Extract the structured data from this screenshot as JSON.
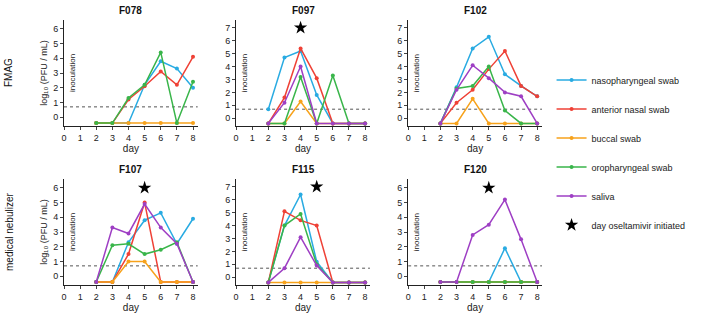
{
  "row_labels": [
    "FMAG",
    "medical nebulizer"
  ],
  "event": {
    "name": "day oseltamivir initiated",
    "marker": "star",
    "color": "#000000"
  },
  "legend": "right",
  "chart_data": [
    {
      "type": "line",
      "title": "F078",
      "x_label": "day",
      "y_label": "log₁₀ (PFU / mL)",
      "x": [
        2,
        3,
        4,
        5,
        6,
        7,
        8
      ],
      "xlim": [
        0,
        8.3
      ],
      "xticks": [
        0,
        1,
        2,
        3,
        4,
        5,
        6,
        7,
        8
      ],
      "ylim": [
        -0.6,
        6.6
      ],
      "yticks": [
        0,
        1,
        2,
        3,
        4,
        5,
        6
      ],
      "grid": false,
      "detection_limit": 0.7,
      "oseltamivir_day": null,
      "annotations": [
        {
          "text": "inoculation",
          "x": 0.5
        }
      ],
      "series": [
        {
          "name": "nasopharyngeal swab",
          "color": "#29abe2",
          "values": [
            -0.4,
            -0.4,
            -0.4,
            2.2,
            3.8,
            3.3,
            2.0
          ]
        },
        {
          "name": "anterior nasal swab",
          "color": "#ef4136",
          "values": [
            -0.4,
            -0.4,
            1.2,
            2.1,
            3.1,
            2.2,
            4.1
          ]
        },
        {
          "name": "buccal swab",
          "color": "#f7a21b",
          "values": [
            -0.4,
            -0.4,
            -0.4,
            -0.4,
            -0.4,
            -0.4,
            -0.4
          ]
        },
        {
          "name": "oropharyngeal swab",
          "color": "#39b54a",
          "values": [
            -0.4,
            -0.4,
            1.3,
            2.2,
            4.4,
            -0.4,
            2.4
          ]
        },
        {
          "name": "saliva",
          "color": "#9e3fc4",
          "values": [
            null,
            null,
            null,
            null,
            null,
            null,
            null
          ]
        }
      ]
    },
    {
      "type": "line",
      "title": "F097",
      "x_label": "day",
      "x": [
        2,
        3,
        4,
        5,
        6,
        7,
        8
      ],
      "xlim": [
        0,
        8.3
      ],
      "xticks": [
        0,
        1,
        2,
        3,
        4,
        5,
        6,
        7,
        8
      ],
      "ylim": [
        -0.6,
        7.6
      ],
      "yticks": [
        0,
        1,
        2,
        3,
        4,
        5,
        6,
        7
      ],
      "grid": false,
      "detection_limit": 0.7,
      "oseltamivir_day": 4,
      "annotations": [
        {
          "text": "inoculation",
          "x": 0.5
        }
      ],
      "series": [
        {
          "name": "nasopharyngeal swab",
          "color": "#29abe2",
          "values": [
            0.7,
            4.7,
            5.2,
            1.8,
            -0.4,
            -0.4,
            -0.4
          ]
        },
        {
          "name": "anterior nasal swab",
          "color": "#ef4136",
          "values": [
            -0.4,
            1.6,
            5.4,
            3.1,
            -0.4,
            -0.4,
            -0.4
          ]
        },
        {
          "name": "buccal swab",
          "color": "#f7a21b",
          "values": [
            -0.4,
            -0.4,
            1.3,
            -0.4,
            -0.4,
            -0.4,
            -0.4
          ]
        },
        {
          "name": "oropharyngeal swab",
          "color": "#39b54a",
          "values": [
            -0.4,
            -0.4,
            3.2,
            -0.4,
            3.3,
            -0.4,
            -0.4
          ]
        },
        {
          "name": "saliva",
          "color": "#9e3fc4",
          "values": [
            -0.4,
            1.2,
            4.0,
            -0.4,
            -0.4,
            -0.4,
            -0.4
          ]
        }
      ]
    },
    {
      "type": "line",
      "title": "F102",
      "x_label": "day",
      "x": [
        2,
        3,
        4,
        5,
        6,
        7,
        8
      ],
      "xlim": [
        0,
        8.3
      ],
      "xticks": [
        0,
        1,
        2,
        3,
        4,
        5,
        6,
        7,
        8
      ],
      "ylim": [
        -0.6,
        7.6
      ],
      "yticks": [
        0,
        1,
        2,
        3,
        4,
        5,
        6,
        7
      ],
      "grid": false,
      "detection_limit": 0.7,
      "oseltamivir_day": null,
      "annotations": [
        {
          "text": "inoculation",
          "x": 0.5
        }
      ],
      "series": [
        {
          "name": "nasopharyngeal swab",
          "color": "#29abe2",
          "values": [
            -0.4,
            2.4,
            5.4,
            6.3,
            3.4,
            2.5,
            1.7
          ]
        },
        {
          "name": "anterior nasal swab",
          "color": "#ef4136",
          "values": [
            -0.4,
            1.2,
            2.2,
            3.8,
            5.2,
            2.5,
            1.7
          ]
        },
        {
          "name": "buccal swab",
          "color": "#f7a21b",
          "values": [
            -0.4,
            -0.4,
            1.5,
            -0.4,
            -0.4,
            -0.4,
            -0.4
          ]
        },
        {
          "name": "oropharyngeal swab",
          "color": "#39b54a",
          "values": [
            -0.4,
            2.3,
            2.5,
            4.0,
            0.6,
            -0.4,
            -0.4
          ]
        },
        {
          "name": "saliva",
          "color": "#9e3fc4",
          "values": [
            -0.4,
            2.2,
            4.1,
            3.1,
            2.0,
            1.7,
            -0.4
          ]
        }
      ]
    },
    {
      "type": "line",
      "title": "F107",
      "x_label": "day",
      "y_label": "log₁₀ (PFU / mL)",
      "x": [
        2,
        3,
        4,
        5,
        6,
        7,
        8
      ],
      "xlim": [
        0,
        8.3
      ],
      "xticks": [
        0,
        1,
        2,
        3,
        4,
        5,
        6,
        7,
        8
      ],
      "ylim": [
        -0.6,
        6.6
      ],
      "yticks": [
        0,
        1,
        2,
        3,
        4,
        5,
        6
      ],
      "grid": false,
      "detection_limit": 0.7,
      "oseltamivir_day": 5,
      "annotations": [
        {
          "text": "inoculation",
          "x": 0.5
        }
      ],
      "series": [
        {
          "name": "nasopharyngeal swab",
          "color": "#29abe2",
          "values": [
            -0.4,
            -0.4,
            2.3,
            3.8,
            4.3,
            2.2,
            3.9
          ]
        },
        {
          "name": "anterior nasal swab",
          "color": "#ef4136",
          "values": [
            -0.4,
            -0.4,
            1.5,
            5.0,
            -0.4,
            -0.4,
            -0.4
          ]
        },
        {
          "name": "buccal swab",
          "color": "#f7a21b",
          "values": [
            -0.4,
            -0.4,
            1.0,
            1.0,
            -0.4,
            -0.4,
            -0.4
          ]
        },
        {
          "name": "oropharyngeal swab",
          "color": "#39b54a",
          "values": [
            -0.4,
            2.1,
            2.2,
            1.5,
            1.8,
            2.3,
            -0.4
          ]
        },
        {
          "name": "saliva",
          "color": "#9e3fc4",
          "values": [
            -0.4,
            3.3,
            2.9,
            4.9,
            3.3,
            2.2,
            -0.4
          ]
        }
      ]
    },
    {
      "type": "line",
      "title": "F115",
      "x_label": "day",
      "x": [
        2,
        3,
        4,
        5,
        6,
        7,
        8
      ],
      "xlim": [
        0,
        8.3
      ],
      "xticks": [
        0,
        1,
        2,
        3,
        4,
        5,
        6,
        7,
        8
      ],
      "ylim": [
        -0.6,
        7.6
      ],
      "yticks": [
        0,
        1,
        2,
        3,
        4,
        5,
        6,
        7
      ],
      "grid": false,
      "detection_limit": 0.7,
      "oseltamivir_day": 5,
      "annotations": [
        {
          "text": "inoculation",
          "x": 0.5
        }
      ],
      "series": [
        {
          "name": "nasopharyngeal swab",
          "color": "#29abe2",
          "values": [
            -0.4,
            4.0,
            6.4,
            1.2,
            -0.4,
            -0.4,
            -0.4
          ]
        },
        {
          "name": "anterior nasal swab",
          "color": "#ef4136",
          "values": [
            -0.4,
            5.1,
            4.4,
            4.0,
            -0.4,
            -0.4,
            -0.4
          ]
        },
        {
          "name": "buccal swab",
          "color": "#f7a21b",
          "values": [
            -0.4,
            -0.4,
            -0.4,
            -0.4,
            -0.4,
            -0.4,
            -0.4
          ]
        },
        {
          "name": "oropharyngeal swab",
          "color": "#39b54a",
          "values": [
            -0.4,
            4.0,
            4.9,
            1.0,
            -0.4,
            -0.4,
            -0.4
          ]
        },
        {
          "name": "saliva",
          "color": "#9e3fc4",
          "values": [
            -0.4,
            0.7,
            3.1,
            0.9,
            -0.4,
            -0.4,
            -0.4
          ]
        }
      ]
    },
    {
      "type": "line",
      "title": "F120",
      "x_label": "day",
      "x": [
        2,
        3,
        4,
        5,
        6,
        7,
        8
      ],
      "xlim": [
        0,
        8.3
      ],
      "xticks": [
        0,
        1,
        2,
        3,
        4,
        5,
        6,
        7,
        8
      ],
      "ylim": [
        -0.6,
        6.6
      ],
      "yticks": [
        0,
        1,
        2,
        3,
        4,
        5,
        6
      ],
      "grid": false,
      "detection_limit": 0.7,
      "oseltamivir_day": 5,
      "annotations": [
        {
          "text": "inoculation",
          "x": 0.5
        }
      ],
      "series": [
        {
          "name": "nasopharyngeal swab",
          "color": "#29abe2",
          "values": [
            -0.4,
            -0.4,
            -0.4,
            -0.4,
            1.9,
            -0.4,
            -0.4
          ]
        },
        {
          "name": "anterior nasal swab",
          "color": "#ef4136",
          "values": [
            -0.4,
            -0.4,
            -0.4,
            -0.4,
            -0.4,
            -0.4,
            -0.4
          ]
        },
        {
          "name": "buccal swab",
          "color": "#f7a21b",
          "values": [
            -0.4,
            -0.4,
            -0.4,
            -0.4,
            -0.4,
            -0.4,
            -0.4
          ]
        },
        {
          "name": "oropharyngeal swab",
          "color": "#39b54a",
          "values": [
            -0.4,
            -0.4,
            -0.4,
            -0.4,
            -0.4,
            -0.4,
            -0.4
          ]
        },
        {
          "name": "saliva",
          "color": "#9e3fc4",
          "values": [
            -0.4,
            -0.4,
            2.8,
            3.5,
            5.2,
            2.5,
            -0.4
          ]
        }
      ]
    }
  ]
}
